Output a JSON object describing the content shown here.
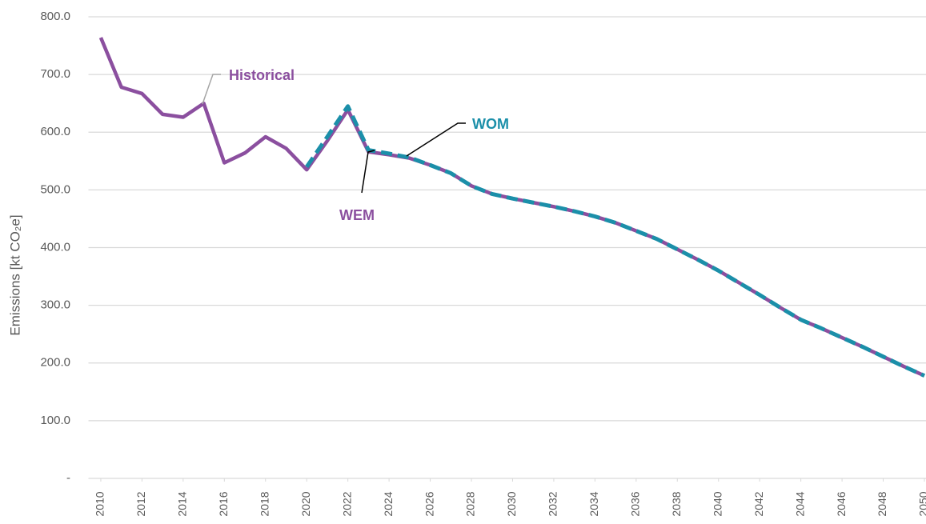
{
  "chart_data": {
    "type": "line",
    "y_label": "Emissions [kt CO₂e]",
    "x": [
      2010,
      2011,
      2012,
      2013,
      2014,
      2015,
      2016,
      2017,
      2018,
      2019,
      2020,
      2021,
      2022,
      2023,
      2024,
      2025,
      2026,
      2027,
      2028,
      2029,
      2030,
      2031,
      2032,
      2033,
      2034,
      2035,
      2036,
      2037,
      2038,
      2039,
      2040,
      2041,
      2042,
      2043,
      2044,
      2045,
      2046,
      2047,
      2048,
      2049,
      2050
    ],
    "xlim": [
      2009.4,
      2050
    ],
    "xticks": [
      2010,
      2012,
      2014,
      2016,
      2018,
      2020,
      2022,
      2024,
      2026,
      2028,
      2030,
      2032,
      2034,
      2036,
      2038,
      2040,
      2042,
      2044,
      2046,
      2048,
      2050
    ],
    "ylim": [
      0,
      800
    ],
    "yticks": [
      {
        "value": 0,
        "label": "-"
      },
      {
        "value": 100,
        "label": "100.0"
      },
      {
        "value": 200,
        "label": "200.0"
      },
      {
        "value": 300,
        "label": "300.0"
      },
      {
        "value": 400,
        "label": "400.0"
      },
      {
        "value": 500,
        "label": "500.0"
      },
      {
        "value": 600,
        "label": "600.0"
      },
      {
        "value": 700,
        "label": "700.0"
      },
      {
        "value": 800,
        "label": "800.0"
      }
    ],
    "grid": true,
    "series": [
      {
        "name": "Historical",
        "color": "#8b4f9f",
        "dashed": false,
        "values": [
          764,
          678,
          667,
          631,
          626,
          650,
          547,
          564,
          592,
          572,
          535,
          585,
          639,
          null,
          null,
          null,
          null,
          null,
          null,
          null,
          null,
          null,
          null,
          null,
          null,
          null,
          null,
          null,
          null,
          null,
          null,
          null,
          null,
          null,
          null,
          null,
          null,
          null,
          null,
          null,
          null
        ]
      },
      {
        "name": "WEM",
        "color": "#8b4f9f",
        "dashed": false,
        "values": [
          null,
          null,
          null,
          null,
          null,
          null,
          null,
          null,
          null,
          null,
          null,
          null,
          639,
          566,
          561,
          555,
          543,
          529,
          507,
          493,
          485,
          478,
          471,
          463,
          454,
          443,
          429,
          415,
          397,
          379,
          360,
          339,
          318,
          296,
          275,
          260,
          244,
          228,
          211,
          194,
          178
        ]
      },
      {
        "name": "WOM",
        "color": "#1b8fa9",
        "dashed": true,
        "values": [
          null,
          null,
          null,
          null,
          null,
          null,
          null,
          null,
          null,
          null,
          540,
          592,
          645,
          569,
          563,
          556,
          543,
          529,
          507,
          493,
          485,
          478,
          471,
          463,
          454,
          443,
          429,
          415,
          397,
          379,
          360,
          339,
          318,
          296,
          275,
          260,
          244,
          228,
          211,
          194,
          178
        ]
      }
    ]
  }
}
